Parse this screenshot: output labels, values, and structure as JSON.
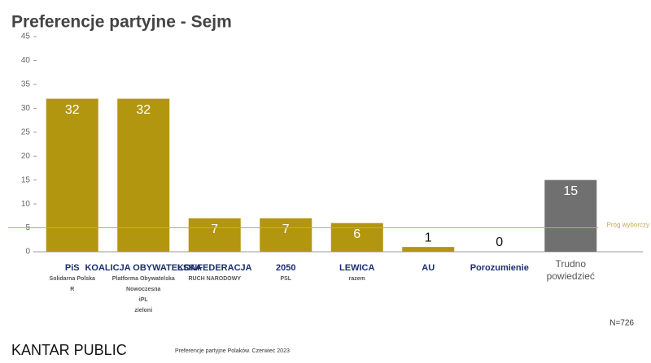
{
  "chart_data": {
    "type": "bar",
    "title": "Preferencje partyjne - Sejm",
    "categories": [
      null,
      null,
      null,
      null,
      null,
      null,
      null,
      "Trudno powiedzieć"
    ],
    "logos": [
      [
        "PiS",
        "Solidarna Polska",
        "R"
      ],
      [
        "KOALICJA OBYWATELSKA",
        "Platforma Obywatelska",
        "Nowoczesna",
        "iPL",
        "zieloni"
      ],
      [
        "KONFEDERACJA",
        "RUCH NARODOWY"
      ],
      [
        "2050",
        "PSL"
      ],
      [
        "LEWICA",
        "razem"
      ],
      [
        "AU"
      ],
      [
        "Porozumienie"
      ],
      []
    ],
    "values": [
      32,
      32,
      7,
      7,
      6,
      1,
      0,
      15
    ],
    "colors": [
      "#b3960f",
      "#b3960f",
      "#b3960f",
      "#b3960f",
      "#b3960f",
      "#b3960f",
      "#b3960f",
      "#707070"
    ],
    "ylim": [
      0,
      45
    ],
    "yticks": [
      0,
      5,
      10,
      15,
      20,
      25,
      30,
      35,
      40,
      45
    ],
    "grid": false,
    "threshold": {
      "value": 5,
      "label": "Próg wyborczy",
      "color": "#c9a850"
    },
    "note": "N=726",
    "source": "Preferencje partyjne Polaków. Czerwiec 2023",
    "brand": "KANTAR PUBLIC"
  }
}
